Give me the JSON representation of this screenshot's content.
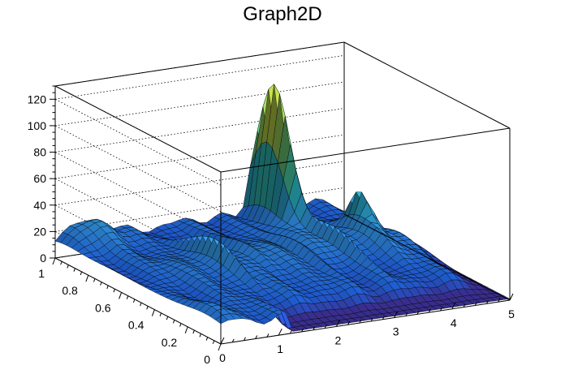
{
  "chart_data": {
    "type": "surface",
    "title": "Graph2D",
    "xlabel": "",
    "ylabel": "",
    "zlabel": "",
    "xlim": [
      0,
      5
    ],
    "ylim": [
      0,
      1
    ],
    "zlim": [
      0,
      130
    ],
    "x_ticks": [
      "0",
      "1",
      "2",
      "3",
      "4",
      "5"
    ],
    "y_ticks": [
      "0",
      "0.2",
      "0.4",
      "0.6",
      "0.8",
      "1"
    ],
    "z_ticks": [
      "0",
      "20",
      "40",
      "60",
      "80",
      "100",
      "120"
    ],
    "grid": true,
    "palette": [
      "#3a2f91",
      "#1f5fd6",
      "#2e8ad6",
      "#27b0b6",
      "#5cc27a",
      "#b9c63a",
      "#f0e32a"
    ],
    "features": {
      "plateau_level": 12,
      "ridge_level": 28,
      "main_peak": {
        "x": 3.5,
        "y": 0.9,
        "z": 125
      },
      "secondary_peak": {
        "x": 4.3,
        "y": 0.65,
        "z": 40
      },
      "drop_x": 1.2
    }
  }
}
